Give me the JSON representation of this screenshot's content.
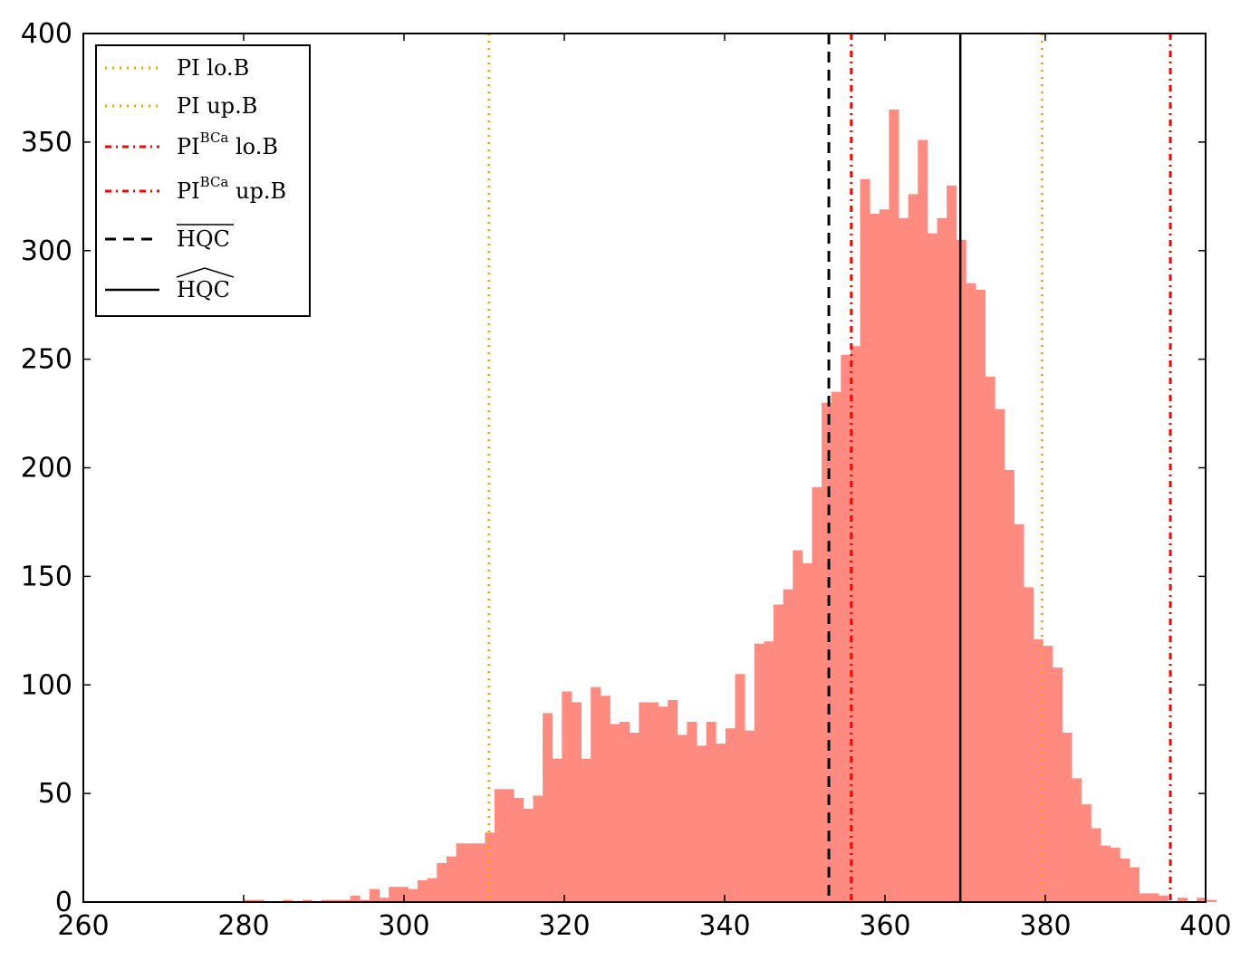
{
  "chart_data": {
    "type": "bar",
    "title": "",
    "xlabel": "",
    "ylabel": "",
    "xlim": [
      260,
      400
    ],
    "ylim": [
      0,
      400
    ],
    "xticks": [
      "260",
      "280",
      "300",
      "320",
      "340",
      "360",
      "380",
      "400"
    ],
    "yticks": [
      "0",
      "50",
      "100",
      "150",
      "200",
      "250",
      "300",
      "350",
      "400"
    ],
    "grid": false,
    "legend_placement": "top-left",
    "histogram": {
      "bin_start": 264.5,
      "bin_width": 1.2,
      "color": "#ff8a80",
      "counts": [
        0,
        0,
        0,
        0,
        0,
        0,
        0,
        0,
        0,
        0,
        0,
        0,
        0,
        1,
        1,
        0,
        0,
        1,
        0,
        1,
        0,
        1,
        1,
        1,
        3,
        1,
        6,
        2,
        7,
        7,
        6,
        10,
        11,
        18,
        21,
        27,
        27,
        27,
        32,
        52,
        52,
        48,
        43,
        49,
        87,
        66,
        97,
        92,
        66,
        99,
        95,
        82,
        83,
        78,
        92,
        92,
        90,
        93,
        77,
        83,
        72,
        83,
        73,
        80,
        105,
        79,
        119,
        120,
        137,
        144,
        162,
        156,
        191,
        230,
        235,
        252,
        256,
        333,
        317,
        319,
        365,
        315,
        326,
        351,
        308,
        315,
        330,
        305,
        285,
        282,
        242,
        227,
        199,
        174,
        145,
        121,
        118,
        108,
        78,
        57,
        45,
        34,
        26,
        25,
        20,
        16,
        4,
        4,
        3,
        0,
        2,
        0,
        2,
        1
      ]
    },
    "vlines": [
      {
        "name": "PI lo.B",
        "x": 310.6,
        "color": "#ffa500",
        "style": "dotted"
      },
      {
        "name": "PI up.B",
        "x": 379.6,
        "color": "#ffa500",
        "style": "dotted"
      },
      {
        "name": "PI^BCa lo.B",
        "x": 355.8,
        "color": "#ff0000",
        "style": "dashdot"
      },
      {
        "name": "PI^BCa up.B",
        "x": 395.6,
        "color": "#ff0000",
        "style": "dashdot"
      },
      {
        "name": "HQC-bar",
        "x": 353.0,
        "color": "#000000",
        "style": "dashed"
      },
      {
        "name": "HQC-hat",
        "x": 369.4,
        "color": "#000000",
        "style": "solid"
      }
    ],
    "legend": [
      {
        "base": "PI",
        "sup": "",
        "tail": " lo.B",
        "color": "#ffa500",
        "style": "dotted"
      },
      {
        "base": "PI",
        "sup": "",
        "tail": " up.B",
        "color": "#ffa500",
        "style": "dotted"
      },
      {
        "base": "PI",
        "sup": "BCa",
        "tail": " lo.B",
        "color": "#ff0000",
        "style": "dashdot"
      },
      {
        "base": "PI",
        "sup": "BCa",
        "tail": " up.B",
        "color": "#ff0000",
        "style": "dashdot"
      },
      {
        "base": "HQC",
        "sup": "",
        "tail": "",
        "accent": "bar",
        "color": "#000000",
        "style": "dashed"
      },
      {
        "base": "HQC",
        "sup": "",
        "tail": "",
        "accent": "hat",
        "color": "#000000",
        "style": "solid"
      }
    ]
  }
}
